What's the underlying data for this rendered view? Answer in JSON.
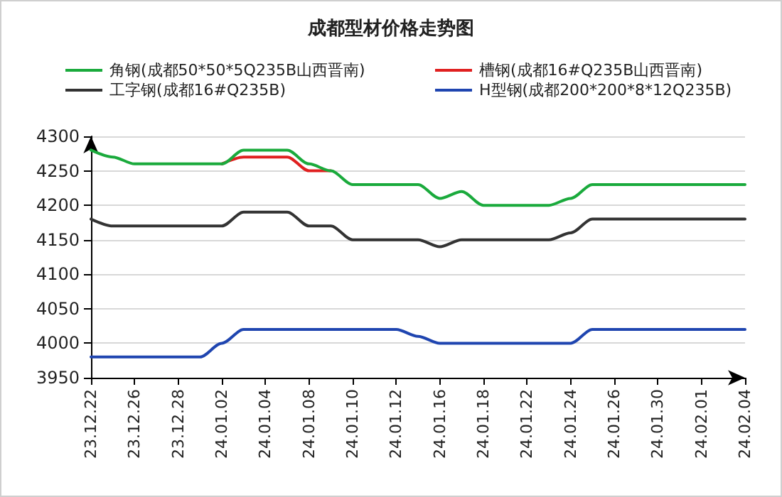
{
  "chart_data": {
    "type": "line",
    "title": "成都型材价格走势图",
    "categories": [
      "23.12.22",
      null,
      "23.12.26",
      null,
      "23.12.28",
      null,
      "24.01.02",
      null,
      "24.01.04",
      null,
      "24.01.08",
      null,
      "24.01.10",
      null,
      "24.01.12",
      null,
      "24.01.16",
      null,
      "24.01.18",
      null,
      "24.01.22",
      null,
      "24.01.24",
      null,
      "24.01.26",
      null,
      "24.01.30",
      null,
      "24.02.01",
      null,
      "24.02.04"
    ],
    "series": [
      {
        "name": "角钢(成都50*50*5Q235B山西晋南)",
        "color": "#1aaa3c",
        "values": [
          4280,
          4270,
          4260,
          4260,
          4260,
          4260,
          4260,
          4280,
          4280,
          4280,
          4260,
          4250,
          4230,
          4230,
          4230,
          4230,
          4210,
          4220,
          4200,
          4200,
          4200,
          4200,
          4210,
          4230,
          4230,
          4230,
          4230,
          4230,
          4230,
          4230,
          4230
        ]
      },
      {
        "name": "槽钢(成都16#Q235B山西晋南)",
        "color": "#e02020",
        "values": [
          null,
          null,
          null,
          null,
          null,
          null,
          4260,
          4270,
          4270,
          4270,
          4250,
          4250,
          null,
          null,
          null,
          null,
          null,
          null,
          null,
          null,
          null,
          null,
          null,
          null,
          null,
          null,
          null,
          null,
          null,
          null,
          null
        ]
      },
      {
        "name": "工字钢(成都16#Q235B)",
        "color": "#333333",
        "values": [
          4180,
          4170,
          4170,
          4170,
          4170,
          4170,
          4170,
          4190,
          4190,
          4190,
          4170,
          4170,
          4150,
          4150,
          4150,
          4150,
          4140,
          4150,
          4150,
          4150,
          4150,
          4150,
          4160,
          4180,
          4180,
          4180,
          4180,
          4180,
          4180,
          4180,
          4180
        ]
      },
      {
        "name": "H型钢(成都200*200*8*12Q235B)",
        "color": "#1f45b0",
        "values": [
          3980,
          3980,
          3980,
          3980,
          3980,
          3980,
          4000,
          4020,
          4020,
          4020,
          4020,
          4020,
          4020,
          4020,
          4020,
          4010,
          4000,
          4000,
          4000,
          4000,
          4000,
          4000,
          4000,
          4020,
          4020,
          4020,
          4020,
          4020,
          4020,
          4020,
          4020
        ]
      }
    ],
    "ylim": [
      3950,
      4300
    ],
    "yticks": [
      3950,
      4000,
      4050,
      4100,
      4150,
      4200,
      4250,
      4300
    ],
    "grid": "y",
    "legend": "top",
    "marker": "none",
    "line_style": "solid"
  }
}
